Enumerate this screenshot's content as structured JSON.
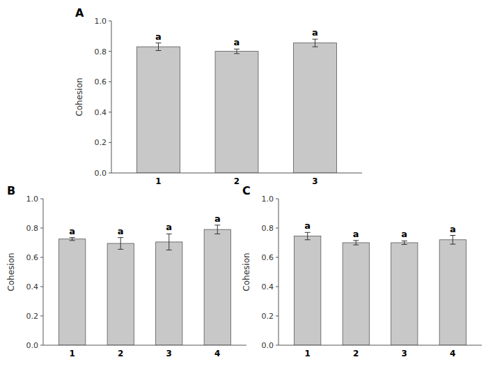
{
  "chart_data": [
    {
      "type": "bar",
      "title": "A",
      "categories": [
        "1",
        "2",
        "3"
      ],
      "values": [
        0.83,
        0.8,
        0.855
      ],
      "errors": [
        0.025,
        0.015,
        0.025
      ],
      "annotations": [
        "a",
        "a",
        "a"
      ],
      "ylabel": "Cohesion",
      "color": "#C8C8C8",
      "ylim": [
        0,
        1
      ],
      "yticks": [
        {
          "value": 0,
          "label": "0.0"
        },
        0.2,
        0.4,
        0.6,
        0.8,
        {
          "value": 1,
          "label": "1.0"
        }
      ],
      "grid": false
    },
    {
      "type": "bar",
      "title": "B",
      "categories": [
        "1",
        "2",
        "3",
        "4"
      ],
      "values": [
        0.725,
        0.695,
        0.705,
        0.79
      ],
      "errors": [
        0.01,
        0.04,
        0.055,
        0.03
      ],
      "annotations": [
        "a",
        "a",
        "a",
        "a"
      ],
      "ylabel": "Cohesion",
      "color": "#C8C8C8",
      "ylim": [
        0,
        1
      ],
      "yticks": [
        {
          "value": 0,
          "label": "0.0"
        },
        0.2,
        0.4,
        0.6,
        0.8,
        {
          "value": 1,
          "label": "1.0"
        }
      ],
      "grid": false
    },
    {
      "type": "bar",
      "title": "C",
      "categories": [
        "1",
        "2",
        "3",
        "4"
      ],
      "values": [
        0.745,
        0.7,
        0.7,
        0.72
      ],
      "errors": [
        0.025,
        0.015,
        0.012,
        0.03
      ],
      "annotations": [
        "a",
        "a",
        "a",
        "a"
      ],
      "ylabel": "Cohesion",
      "color": "#C8C8C8",
      "ylim": [
        0,
        1
      ],
      "yticks": [
        {
          "value": 0,
          "label": "0.0"
        },
        0.2,
        0.4,
        0.6,
        0.8,
        {
          "value": 1,
          "label": "1.0"
        }
      ],
      "grid": false
    }
  ]
}
